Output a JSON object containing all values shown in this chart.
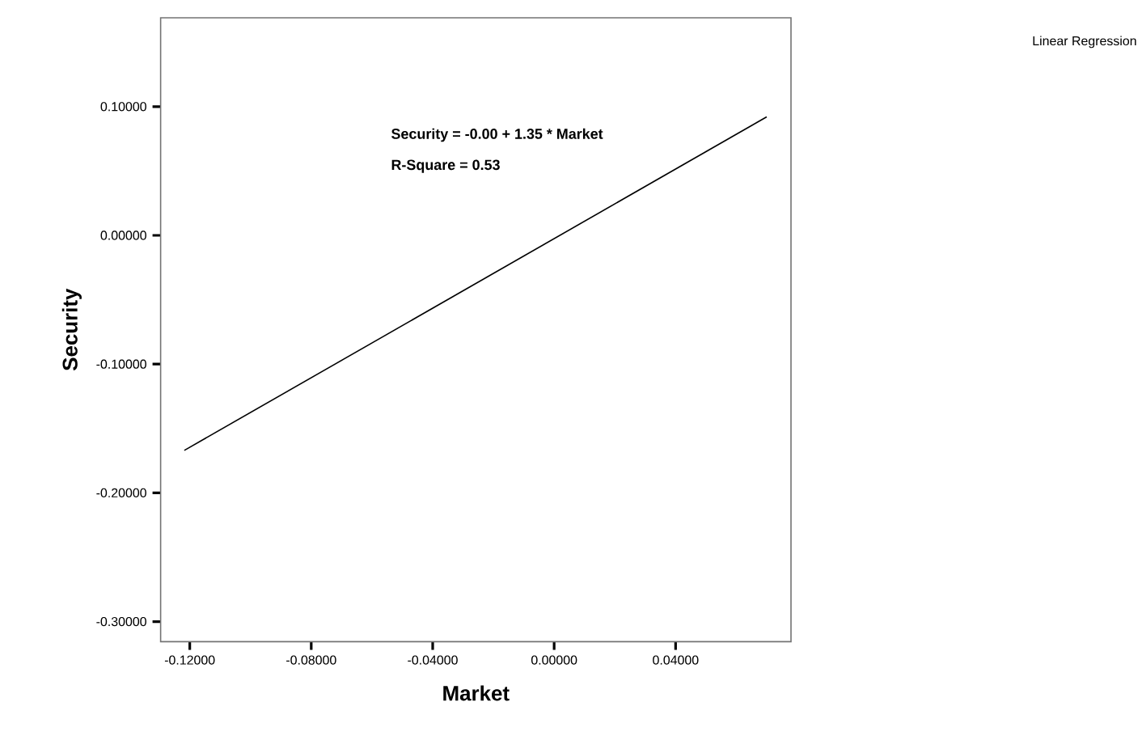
{
  "chart_data": {
    "type": "line",
    "xlabel": "Market",
    "ylabel": "Security",
    "annotations": [
      "Security = -0.00 + 1.35 * Market",
      "R-Square = 0.53",
      "Linear Regression"
    ],
    "x": [
      -0.1218,
      0.07
    ],
    "series": [
      {
        "color": "#000000",
        "values": [
          -0.167,
          0.092
        ]
      }
    ],
    "xlim": [
      -0.1296,
      0.078
    ],
    "ylim": [
      -0.3156,
      0.169
    ],
    "xticks": [
      {
        "value": -0.12,
        "label": "-0.12000"
      },
      {
        "value": -0.08,
        "label": "-0.08000"
      },
      {
        "value": -0.04,
        "label": "-0.04000"
      },
      {
        "value": 0,
        "label": "0.00000"
      },
      {
        "value": 0.04,
        "label": "0.04000"
      }
    ],
    "yticks": [
      {
        "value": -0.3,
        "label": "-0.30000"
      },
      {
        "value": -0.2,
        "label": "-0.20000"
      },
      {
        "value": -0.1,
        "label": "-0.10000"
      },
      {
        "value": 0,
        "label": "0.00000"
      },
      {
        "value": 0.1,
        "label": "0.10000"
      }
    ],
    "marker": "none",
    "line_style": "solid"
  }
}
